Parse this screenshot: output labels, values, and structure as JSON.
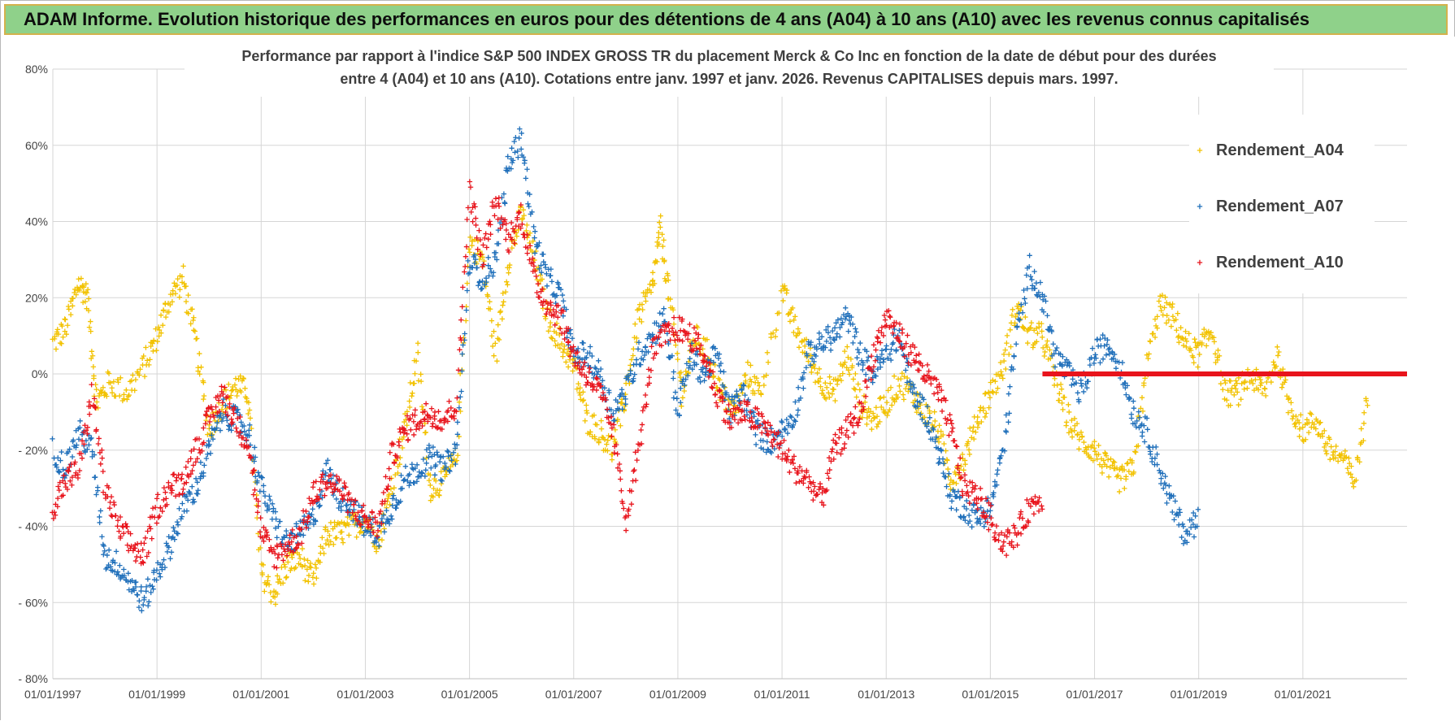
{
  "banner": {
    "title": "ADAM Informe. Evolution historique des performances en euros pour des détentions de 4 ans (A04) à 10 ans (A10) avec les revenus connus capitalisés"
  },
  "chart_data": {
    "type": "scatter",
    "title_line1": "Performance par rapport à l'indice S&P 500 INDEX GROSS TR  du placement Merck & Co Inc en fonction de la date de début pour des durées",
    "title_line2": "entre 4 (A04) et 10 ans (A10). Cotations entre janv. 1997 et janv. 2026. Revenus CAPITALISES depuis mars. 1997.",
    "xlabel": "",
    "ylabel": "",
    "x_range": [
      "01/01/1997",
      "01/01/2023"
    ],
    "ylim": [
      -80,
      80
    ],
    "y_ticks": [
      "80%",
      "60%",
      "40%",
      "20%",
      "0%",
      "- 20%",
      "- 40%",
      "- 60%",
      "- 80%"
    ],
    "x_ticks": [
      "01/01/1997",
      "01/01/1999",
      "01/01/2001",
      "01/01/2003",
      "01/01/2005",
      "01/01/2007",
      "01/01/2009",
      "01/01/2011",
      "01/01/2013",
      "01/01/2015",
      "01/01/2017",
      "01/01/2019",
      "01/01/2021"
    ],
    "grid": true,
    "legend_position": "top-right",
    "marker": "+",
    "series": [
      {
        "name": "Rendement_A04",
        "color": "#f2c200",
        "points": [
          [
            "1997-01",
            8
          ],
          [
            "1997-04",
            12
          ],
          [
            "1997-07",
            24
          ],
          [
            "1997-09",
            20
          ],
          [
            "1997-11",
            -8
          ],
          [
            "1998-02",
            -2
          ],
          [
            "1998-06",
            -5
          ],
          [
            "1998-10",
            2
          ],
          [
            "1999-01",
            10
          ],
          [
            "1999-04",
            20
          ],
          [
            "1999-07",
            25
          ],
          [
            "1999-10",
            8
          ],
          [
            "2000-01",
            -15
          ],
          [
            "2000-04",
            -8
          ],
          [
            "2000-07",
            -3
          ],
          [
            "2000-10",
            -5
          ],
          [
            "2001-01",
            -52
          ],
          [
            "2001-04",
            -58
          ],
          [
            "2001-07",
            -50
          ],
          [
            "2001-10",
            -48
          ],
          [
            "2002-01",
            -55
          ],
          [
            "2002-04",
            -42
          ],
          [
            "2002-07",
            -42
          ],
          [
            "2002-10",
            -40
          ],
          [
            "2003-01",
            -38
          ],
          [
            "2003-04",
            -44
          ],
          [
            "2003-07",
            -30
          ],
          [
            "2003-10",
            -15
          ],
          [
            "2004-01",
            5
          ],
          [
            "2004-04",
            -30
          ],
          [
            "2004-07",
            -28
          ],
          [
            "2004-10",
            -22
          ],
          [
            "2005-01",
            35
          ],
          [
            "2005-04",
            30
          ],
          [
            "2005-07",
            5
          ],
          [
            "2005-10",
            30
          ],
          [
            "2006-01",
            42
          ],
          [
            "2006-04",
            30
          ],
          [
            "2006-07",
            15
          ],
          [
            "2006-10",
            8
          ],
          [
            "2007-01",
            2
          ],
          [
            "2007-04",
            -12
          ],
          [
            "2007-07",
            -15
          ],
          [
            "2007-10",
            -20
          ],
          [
            "2008-01",
            -5
          ],
          [
            "2008-04",
            15
          ],
          [
            "2008-07",
            22
          ],
          [
            "2008-09",
            38
          ],
          [
            "2008-11",
            20
          ],
          [
            "2009-02",
            -5
          ],
          [
            "2009-05",
            10
          ],
          [
            "2009-08",
            5
          ],
          [
            "2009-11",
            -5
          ],
          [
            "2010-02",
            -10
          ],
          [
            "2010-05",
            0
          ],
          [
            "2010-08",
            -5
          ],
          [
            "2011-01",
            22
          ],
          [
            "2011-04",
            12
          ],
          [
            "2011-07",
            5
          ],
          [
            "2011-10",
            -2
          ],
          [
            "2012-01",
            -5
          ],
          [
            "2012-04",
            5
          ],
          [
            "2012-07",
            -8
          ],
          [
            "2012-10",
            -12
          ],
          [
            "2013-01",
            -8
          ],
          [
            "2013-04",
            -2
          ],
          [
            "2013-07",
            -5
          ],
          [
            "2013-10",
            -10
          ],
          [
            "2014-01",
            -15
          ],
          [
            "2014-04",
            -28
          ],
          [
            "2014-07",
            -22
          ],
          [
            "2014-10",
            -12
          ],
          [
            "2015-01",
            -5
          ],
          [
            "2015-04",
            2
          ],
          [
            "2015-07",
            18
          ],
          [
            "2015-10",
            10
          ],
          [
            "2016-01",
            10
          ],
          [
            "2016-04",
            -2
          ],
          [
            "2016-07",
            -12
          ],
          [
            "2016-10",
            -18
          ],
          [
            "2017-01",
            -20
          ],
          [
            "2017-04",
            -25
          ],
          [
            "2017-07",
            -28
          ],
          [
            "2017-10",
            -25
          ],
          [
            "2018-01",
            2
          ],
          [
            "2018-04",
            18
          ],
          [
            "2018-07",
            15
          ],
          [
            "2018-10",
            8
          ],
          [
            "2019-01",
            5
          ],
          [
            "2019-04",
            12
          ],
          [
            "2019-07",
            -5
          ],
          [
            "2019-10",
            -5
          ],
          [
            "2020-01",
            0
          ],
          [
            "2020-04",
            -5
          ],
          [
            "2020-07",
            5
          ],
          [
            "2020-10",
            -8
          ],
          [
            "2021-01",
            -15
          ],
          [
            "2021-04",
            -12
          ],
          [
            "2021-07",
            -20
          ],
          [
            "2021-10",
            -22
          ],
          [
            "2022-01",
            -28
          ],
          [
            "2022-04",
            -5
          ]
        ]
      },
      {
        "name": "Rendement_A07",
        "color": "#1f6fba",
        "points": [
          [
            "1997-01",
            -20
          ],
          [
            "1997-04",
            -25
          ],
          [
            "1997-07",
            -15
          ],
          [
            "1997-10",
            -20
          ],
          [
            "1998-01",
            -48
          ],
          [
            "1998-04",
            -50
          ],
          [
            "1998-07",
            -55
          ],
          [
            "1998-10",
            -60
          ],
          [
            "1999-01",
            -52
          ],
          [
            "1999-04",
            -45
          ],
          [
            "1999-07",
            -35
          ],
          [
            "1999-10",
            -30
          ],
          [
            "2000-01",
            -20
          ],
          [
            "2000-04",
            -10
          ],
          [
            "2000-07",
            -12
          ],
          [
            "2000-10",
            -15
          ],
          [
            "2001-01",
            -30
          ],
          [
            "2001-04",
            -38
          ],
          [
            "2001-07",
            -45
          ],
          [
            "2001-10",
            -42
          ],
          [
            "2002-01",
            -38
          ],
          [
            "2002-04",
            -25
          ],
          [
            "2002-07",
            -32
          ],
          [
            "2002-10",
            -35
          ],
          [
            "2003-01",
            -40
          ],
          [
            "2003-04",
            -42
          ],
          [
            "2003-07",
            -35
          ],
          [
            "2003-10",
            -28
          ],
          [
            "2004-01",
            -25
          ],
          [
            "2004-04",
            -22
          ],
          [
            "2004-07",
            -25
          ],
          [
            "2004-10",
            -20
          ],
          [
            "2005-01",
            30
          ],
          [
            "2005-04",
            25
          ],
          [
            "2005-07",
            30
          ],
          [
            "2005-10",
            55
          ],
          [
            "2006-01",
            62
          ],
          [
            "2006-04",
            35
          ],
          [
            "2006-07",
            25
          ],
          [
            "2006-10",
            20
          ],
          [
            "2007-01",
            5
          ],
          [
            "2007-04",
            5
          ],
          [
            "2007-07",
            0
          ],
          [
            "2007-10",
            -10
          ],
          [
            "2008-01",
            -5
          ],
          [
            "2008-04",
            5
          ],
          [
            "2008-07",
            10
          ],
          [
            "2008-10",
            15
          ],
          [
            "2009-01",
            -10
          ],
          [
            "2009-04",
            5
          ],
          [
            "2009-07",
            0
          ],
          [
            "2009-10",
            5
          ],
          [
            "2010-01",
            -10
          ],
          [
            "2010-04",
            -5
          ],
          [
            "2010-07",
            -15
          ],
          [
            "2010-10",
            -18
          ],
          [
            "2011-01",
            -15
          ],
          [
            "2011-04",
            -10
          ],
          [
            "2011-07",
            5
          ],
          [
            "2011-10",
            8
          ],
          [
            "2012-01",
            10
          ],
          [
            "2012-04",
            15
          ],
          [
            "2012-07",
            5
          ],
          [
            "2012-10",
            0
          ],
          [
            "2013-01",
            5
          ],
          [
            "2013-04",
            10
          ],
          [
            "2013-07",
            -5
          ],
          [
            "2013-10",
            -10
          ],
          [
            "2014-01",
            -20
          ],
          [
            "2014-04",
            -32
          ],
          [
            "2014-07",
            -35
          ],
          [
            "2014-10",
            -38
          ],
          [
            "2015-01",
            -35
          ],
          [
            "2015-04",
            -20
          ],
          [
            "2015-07",
            10
          ],
          [
            "2015-10",
            28
          ],
          [
            "2016-01",
            20
          ],
          [
            "2016-04",
            5
          ],
          [
            "2016-07",
            0
          ],
          [
            "2016-10",
            -5
          ],
          [
            "2017-01",
            5
          ],
          [
            "2017-04",
            8
          ],
          [
            "2017-07",
            2
          ],
          [
            "2017-10",
            -10
          ],
          [
            "2018-01",
            -15
          ],
          [
            "2018-04",
            -25
          ],
          [
            "2018-07",
            -35
          ],
          [
            "2018-10",
            -42
          ],
          [
            "2019-01",
            -38
          ]
        ]
      },
      {
        "name": "Rendement_A10",
        "color": "#e8141c",
        "points": [
          [
            "1997-01",
            -35
          ],
          [
            "1997-04",
            -28
          ],
          [
            "1997-07",
            -25
          ],
          [
            "1997-10",
            -5
          ],
          [
            "1998-01",
            -30
          ],
          [
            "1998-04",
            -40
          ],
          [
            "1998-07",
            -45
          ],
          [
            "1998-10",
            -48
          ],
          [
            "1999-01",
            -35
          ],
          [
            "1999-04",
            -30
          ],
          [
            "1999-07",
            -28
          ],
          [
            "1999-10",
            -20
          ],
          [
            "2000-01",
            -12
          ],
          [
            "2000-04",
            -5
          ],
          [
            "2000-07",
            -12
          ],
          [
            "2000-10",
            -18
          ],
          [
            "2001-01",
            -42
          ],
          [
            "2001-04",
            -48
          ],
          [
            "2001-07",
            -45
          ],
          [
            "2001-10",
            -42
          ],
          [
            "2002-01",
            -32
          ],
          [
            "2002-04",
            -28
          ],
          [
            "2002-07",
            -30
          ],
          [
            "2002-10",
            -35
          ],
          [
            "2003-01",
            -38
          ],
          [
            "2003-04",
            -40
          ],
          [
            "2003-07",
            -22
          ],
          [
            "2003-10",
            -15
          ],
          [
            "2004-01",
            -12
          ],
          [
            "2004-04",
            -10
          ],
          [
            "2004-07",
            -12
          ],
          [
            "2004-10",
            -8
          ],
          [
            "2005-01",
            48
          ],
          [
            "2005-04",
            30
          ],
          [
            "2005-07",
            45
          ],
          [
            "2005-10",
            35
          ],
          [
            "2006-01",
            42
          ],
          [
            "2006-04",
            25
          ],
          [
            "2006-07",
            18
          ],
          [
            "2006-10",
            15
          ],
          [
            "2007-01",
            5
          ],
          [
            "2007-04",
            0
          ],
          [
            "2007-07",
            -5
          ],
          [
            "2007-10",
            -15
          ],
          [
            "2008-01",
            -38
          ],
          [
            "2008-04",
            -20
          ],
          [
            "2008-07",
            5
          ],
          [
            "2008-10",
            10
          ],
          [
            "2009-01",
            12
          ],
          [
            "2009-04",
            10
          ],
          [
            "2009-07",
            5
          ],
          [
            "2009-10",
            -5
          ],
          [
            "2010-01",
            -12
          ],
          [
            "2010-04",
            -10
          ],
          [
            "2010-07",
            -12
          ],
          [
            "2010-10",
            -15
          ],
          [
            "2011-01",
            -20
          ],
          [
            "2011-04",
            -25
          ],
          [
            "2011-07",
            -28
          ],
          [
            "2011-10",
            -33
          ],
          [
            "2012-01",
            -20
          ],
          [
            "2012-04",
            -15
          ],
          [
            "2012-07",
            -10
          ],
          [
            "2012-10",
            5
          ],
          [
            "2013-01",
            15
          ],
          [
            "2013-04",
            10
          ],
          [
            "2013-07",
            5
          ],
          [
            "2013-10",
            0
          ],
          [
            "2014-01",
            -5
          ],
          [
            "2014-04",
            -15
          ],
          [
            "2014-07",
            -30
          ],
          [
            "2014-10",
            -32
          ],
          [
            "2015-01",
            -38
          ],
          [
            "2015-04",
            -45
          ],
          [
            "2015-07",
            -42
          ],
          [
            "2015-10",
            -35
          ],
          [
            "2016-01",
            -32
          ]
        ],
        "flat_segment": {
          "from": "2016-01",
          "to": "2023-01",
          "value": 0
        }
      }
    ]
  }
}
